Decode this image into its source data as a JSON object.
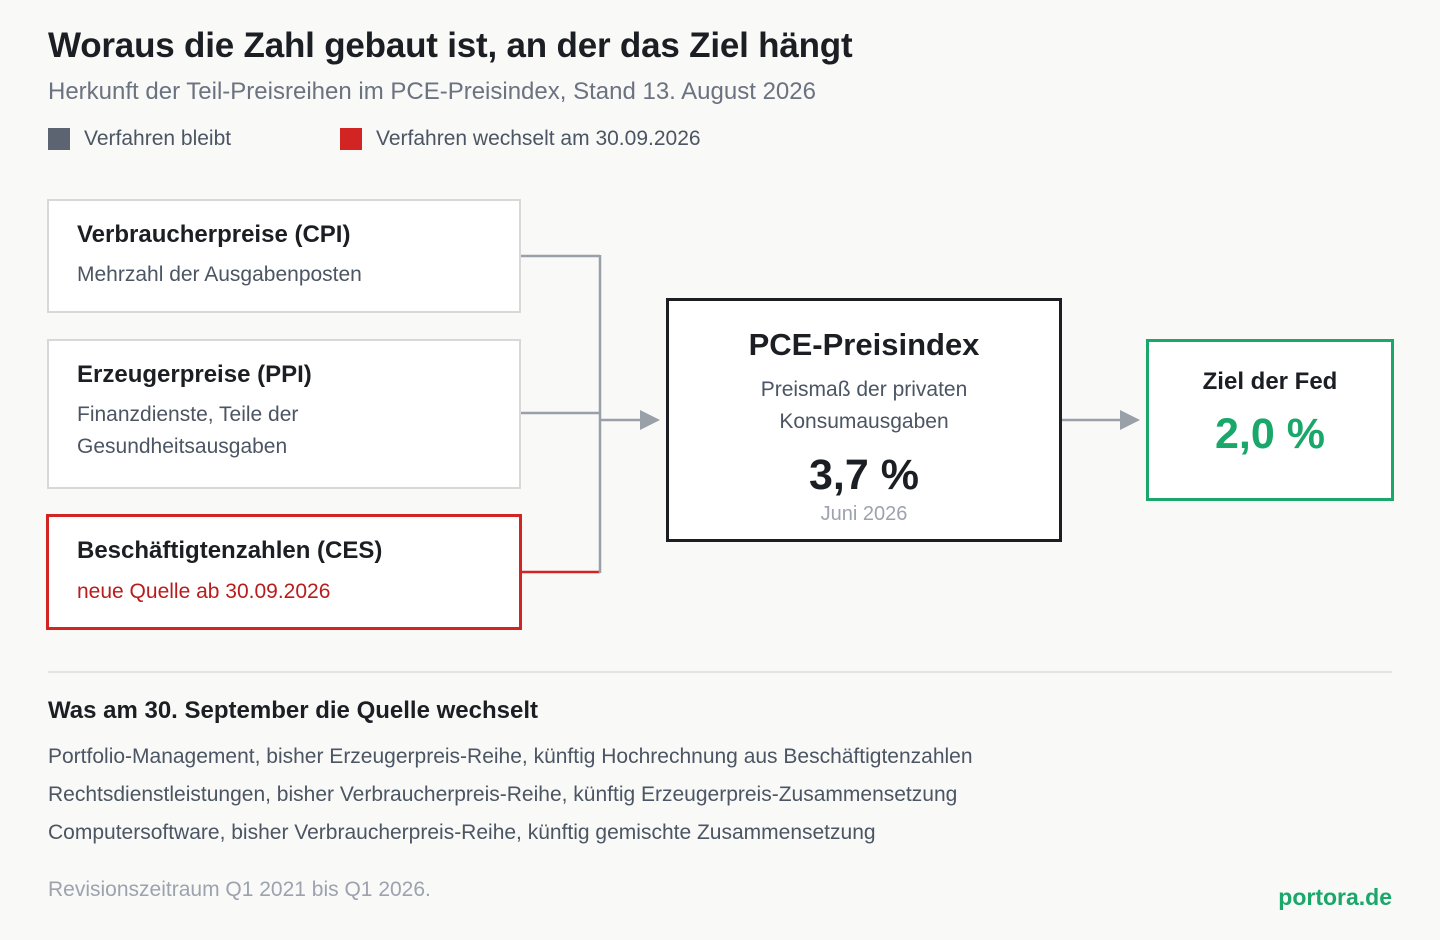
{
  "title": "Woraus die Zahl gebaut ist, an der das Ziel hängt",
  "subtitle": "Herkunft der Teil-Preisreihen im PCE-Preisindex, Stand 13. August 2026",
  "legend": [
    {
      "label": "Verfahren bleibt",
      "color": "#5b6470"
    },
    {
      "label": "Verfahren wechselt am 30.09.2026",
      "color": "#d32424"
    }
  ],
  "sources": [
    {
      "title": "Verbraucherpreise (CPI)",
      "desc": "Mehrzahl der Ausgabenposten",
      "changes": false
    },
    {
      "title": "Erzeugerpreise (PPI)",
      "desc": "Finanzdienste, Teile der Gesundheitsausgaben",
      "changes": false
    },
    {
      "title": "Beschäftigtenzahlen (CES)",
      "desc": "neue Quelle ab 30.09.2026",
      "changes": true
    }
  ],
  "pce": {
    "title": "PCE-Preisindex",
    "desc": "Preismaß der privaten Konsumausgaben",
    "value": "3,7 %",
    "date": "Juni 2026"
  },
  "fed": {
    "title": "Ziel der Fed",
    "value": "2,0 %"
  },
  "changes": {
    "title": "Was am 30. September die Quelle wechselt",
    "items": [
      "Portfolio-Management, bisher Erzeugerpreis-Reihe, künftig Hochrechnung aus Beschäftigtenzahlen",
      "Rechtsdienstleistungen, bisher Verbraucherpreis-Reihe, künftig Erzeugerpreis-Zusammensetzung",
      "Computersoftware, bisher Verbraucherpreis-Reihe, künftig gemischte Zusammensetzung"
    ]
  },
  "footnote": "Revisionszeitraum Q1 2021 bis Q1 2026.",
  "brand": "portora.de",
  "colors": {
    "keep": "#5b6470",
    "change": "#d32424",
    "accent": "#1aa76a",
    "connector": "#9aa0a8"
  }
}
